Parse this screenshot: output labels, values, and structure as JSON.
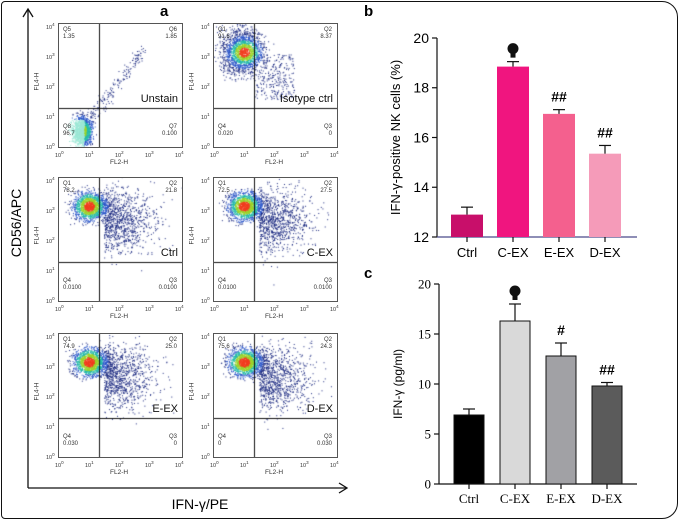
{
  "panel_a": {
    "letter": "a",
    "y_axis_label": "CD56/APC",
    "x_axis_label": "IFN-γ/PE",
    "fl_x_label": "FL2-H",
    "fl_y_label": "FL4-H",
    "ticks": [
      "0",
      "1",
      "2",
      "3",
      "4"
    ],
    "tick_base": "10"
  },
  "flow_panels": [
    {
      "sample": "Unstain",
      "q": [
        [
          "Q5",
          "1.35"
        ],
        [
          "Q6",
          "1.85"
        ],
        [
          "Q8",
          "96.7"
        ],
        [
          "Q7",
          "0.100"
        ]
      ]
    },
    {
      "sample": "Isotype ctrl",
      "q": [
        [
          "Q1",
          "91.6"
        ],
        [
          "Q2",
          "8.37"
        ],
        [
          "Q4",
          "0.020"
        ],
        [
          "Q3",
          "0"
        ]
      ]
    },
    {
      "sample": "Ctrl",
      "q": [
        [
          "Q1",
          "78.2"
        ],
        [
          "Q2",
          "21.8"
        ],
        [
          "Q4",
          "0.0100"
        ],
        [
          "Q3",
          "0.0100"
        ]
      ]
    },
    {
      "sample": "C-EX",
      "q": [
        [
          "Q1",
          "72.5"
        ],
        [
          "Q2",
          "27.5"
        ],
        [
          "Q4",
          "0.0100"
        ],
        [
          "Q3",
          "0.0100"
        ]
      ]
    },
    {
      "sample": "E-EX",
      "q": [
        [
          "Q1",
          "74.9"
        ],
        [
          "Q2",
          "25.0"
        ],
        [
          "Q4",
          "0.030"
        ],
        [
          "Q3",
          "0"
        ]
      ]
    },
    {
      "sample": "D-EX",
      "q": [
        [
          "Q1",
          "75.6"
        ],
        [
          "Q2",
          "24.3"
        ],
        [
          "Q4",
          "0"
        ],
        [
          "Q3",
          "0.030"
        ]
      ]
    }
  ],
  "chart_data": [
    {
      "letter": "b",
      "type": "bar",
      "ylabel": "IFN-γ-positive NK cells (%)",
      "categories": [
        "Ctrl",
        "C-EX",
        "E-EX",
        "D-EX"
      ],
      "values": [
        12.9,
        18.85,
        16.95,
        15.35
      ],
      "errors": [
        0.3,
        0.2,
        0.17,
        0.33
      ],
      "annotations": [
        "",
        "●",
        "##",
        "##"
      ],
      "colors": [
        "#c80f6a",
        "#f0157f",
        "#f4608e",
        "#f59bb9"
      ],
      "ylim": [
        12,
        20
      ],
      "yticks": [
        "12",
        "14",
        "16",
        "18",
        "20"
      ]
    },
    {
      "letter": "c",
      "type": "bar",
      "ylabel": "IFN-γ (pg/ml)",
      "categories": [
        "Ctrl",
        "C-EX",
        "E-EX",
        "D-EX"
      ],
      "values": [
        6.9,
        16.3,
        12.8,
        9.8
      ],
      "errors": [
        0.6,
        1.7,
        1.3,
        0.35
      ],
      "annotations": [
        "",
        "●",
        "#",
        "##"
      ],
      "colors": [
        "#000000",
        "#d9d9d9",
        "#a1a1a5",
        "#5b5b5b"
      ],
      "ylim": [
        0,
        20
      ],
      "yticks": [
        "0",
        "5",
        "10",
        "15",
        "20"
      ]
    }
  ]
}
